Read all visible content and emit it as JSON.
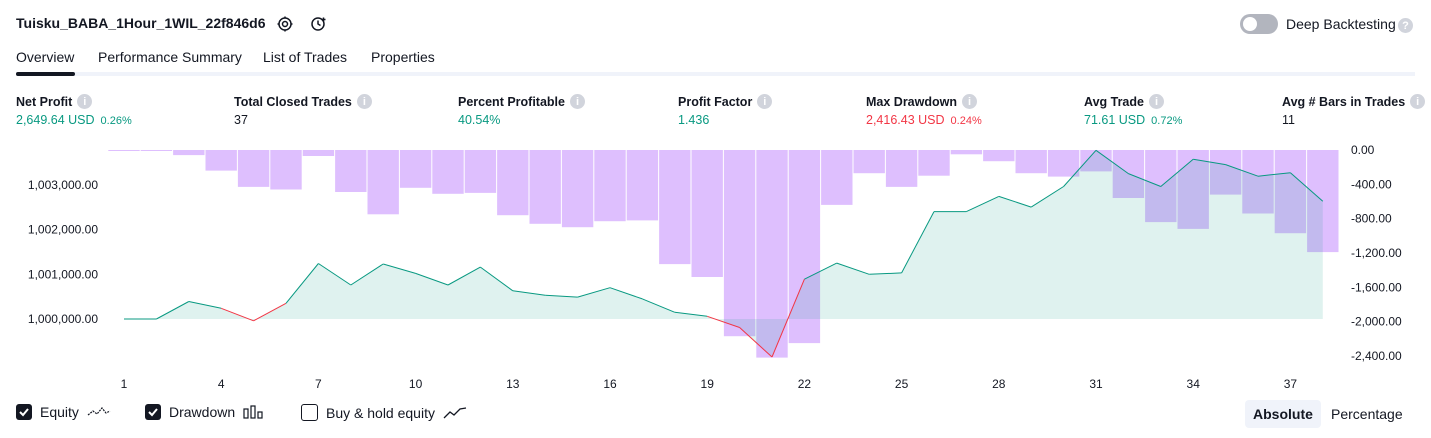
{
  "header": {
    "title": "Tuisku_BABA_1Hour_1WIL_22f846d6",
    "deep_backtesting_label": "Deep Backtesting",
    "deep_backtesting_on": false
  },
  "tabs": [
    {
      "label": "Overview",
      "active": true
    },
    {
      "label": "Performance Summary",
      "active": false
    },
    {
      "label": "List of Trades",
      "active": false
    },
    {
      "label": "Properties",
      "active": false
    }
  ],
  "stats": [
    {
      "label": "Net Profit",
      "value": "2,649.64 USD",
      "pct": "0.26%",
      "color": "#089981"
    },
    {
      "label": "Total Closed Trades",
      "value": "37",
      "pct": "",
      "color": "#131722"
    },
    {
      "label": "Percent Profitable",
      "value": "40.54%",
      "pct": "",
      "color": "#089981"
    },
    {
      "label": "Profit Factor",
      "value": "1.436",
      "pct": "",
      "color": "#089981"
    },
    {
      "label": "Max Drawdown",
      "value": "2,416.43 USD",
      "pct": "0.24%",
      "color": "#f23645"
    },
    {
      "label": "Avg Trade",
      "value": "71.61 USD",
      "pct": "0.72%",
      "color": "#089981"
    },
    {
      "label": "Avg # Bars in Trades",
      "value": "11",
      "pct": "",
      "color": "#131722"
    }
  ],
  "chart_data": {
    "type": "line",
    "x_ticks": [
      1,
      4,
      7,
      10,
      13,
      16,
      19,
      22,
      25,
      28,
      31,
      34,
      37
    ],
    "left_axis_ticks": [
      "1,003,000.00",
      "1,002,000.00",
      "1,001,000.00",
      "1,000,000.00"
    ],
    "left_axis_values": [
      1003000,
      1002000,
      1001000,
      1000000
    ],
    "right_axis_ticks": [
      "0.00",
      "-400.00",
      "-800.00",
      "-1,200.00",
      "-1,600.00",
      "-2,000.00",
      "-2,400.00"
    ],
    "right_axis_values": [
      0,
      -400,
      -800,
      -1200,
      -1600,
      -2000,
      -2400
    ],
    "baseline": 1000000,
    "equity_x": [
      1,
      2,
      3,
      4,
      5,
      6,
      7,
      8,
      9,
      10,
      11,
      12,
      13,
      14,
      15,
      16,
      17,
      18,
      19,
      20,
      21,
      22,
      23,
      24,
      25,
      26,
      27,
      28,
      29,
      30,
      31,
      32,
      33,
      34,
      35,
      36,
      37,
      38
    ],
    "equity": [
      1000000,
      1000000,
      1000390,
      1000240,
      999960,
      1000350,
      1001240,
      1000760,
      1001230,
      1001020,
      1000760,
      1001160,
      1000630,
      1000530,
      1000490,
      1000700,
      1000450,
      1000150,
      1000060,
      999810,
      999150,
      1000890,
      1001250,
      1001000,
      1001030,
      1002400,
      1002400,
      1002740,
      1002500,
      1002960,
      1003770,
      1003250,
      1002960,
      1003570,
      1003450,
      1003190,
      1003270,
      1002630
    ],
    "drawdown_x": [
      1,
      2,
      3,
      4,
      5,
      6,
      7,
      8,
      9,
      10,
      11,
      12,
      13,
      14,
      15,
      16,
      17,
      18,
      19,
      20,
      21,
      22,
      23,
      24,
      25,
      26,
      27,
      28,
      29,
      30,
      31,
      32,
      33,
      34,
      35,
      36,
      37,
      38
    ],
    "drawdown": [
      -10,
      -10,
      -60,
      -240,
      -430,
      -460,
      -70,
      -490,
      -750,
      -440,
      -510,
      -500,
      -760,
      -860,
      -900,
      -830,
      -820,
      -1330,
      -1480,
      -2170,
      -2420,
      -2250,
      -640,
      -270,
      -430,
      -300,
      -50,
      -130,
      -270,
      -310,
      -250,
      -560,
      -840,
      -920,
      -520,
      -740,
      -970,
      -1190
    ],
    "series": [
      {
        "name": "Equity",
        "color": "#089981"
      },
      {
        "name": "Drawdown",
        "color": "#d8b4fe"
      },
      {
        "name": "Buy & hold equity",
        "color": "#131722"
      }
    ]
  },
  "legend": [
    {
      "label": "Equity",
      "checked": true,
      "icon": "equity-icon"
    },
    {
      "label": "Drawdown",
      "checked": true,
      "icon": "drawdown-icon"
    },
    {
      "label": "Buy & hold equity",
      "checked": false,
      "icon": "buy-hold-icon"
    }
  ],
  "modes": [
    {
      "label": "Absolute",
      "active": true
    },
    {
      "label": "Percentage",
      "active": false
    }
  ],
  "colors": {
    "accent": "#131722",
    "positive": "#089981",
    "negative": "#f23645",
    "drawdown": "#d8b4fe"
  }
}
